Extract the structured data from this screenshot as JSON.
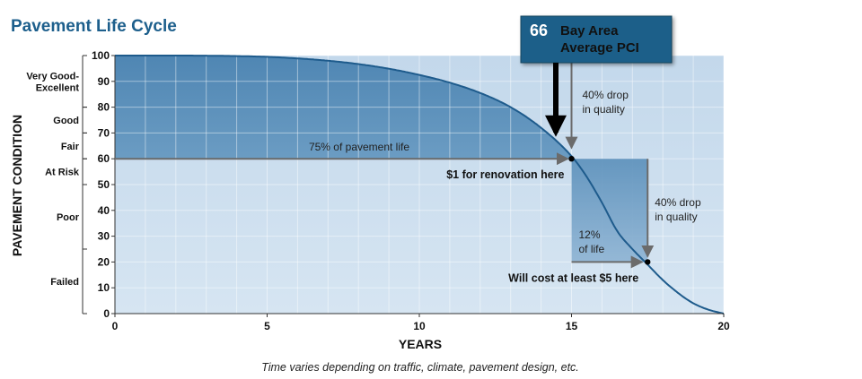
{
  "chart_data": {
    "type": "line",
    "title": "Pavement Life Cycle",
    "xlabel": "YEARS",
    "ylabel": "PAVEMENT CONDITION",
    "xlim": [
      0,
      20
    ],
    "ylim": [
      0,
      100
    ],
    "x_ticks": [
      0,
      5,
      10,
      15,
      20
    ],
    "y_ticks": [
      0,
      10,
      20,
      30,
      40,
      50,
      60,
      70,
      80,
      90,
      100
    ],
    "grid": true,
    "curve": {
      "x": [
        0,
        2,
        4,
        5,
        6,
        7,
        8,
        9,
        10,
        11,
        12,
        13,
        14,
        15,
        15.5,
        16,
        16.5,
        17,
        17.5,
        18,
        18.5,
        19,
        19.5,
        20
      ],
      "y": [
        100,
        100,
        99.8,
        99.5,
        98.9,
        98,
        96.7,
        94.9,
        92.5,
        89.5,
        85.5,
        80,
        72,
        61,
        53,
        43,
        32,
        25,
        19,
        13,
        8,
        4,
        1.5,
        0
      ]
    },
    "condition_bands": [
      {
        "label": "Very Good-Excellent",
        "label_lines": [
          "Very Good-",
          "Excellent"
        ],
        "from": 80,
        "to": 100
      },
      {
        "label": "Good",
        "label_lines": [
          "Good"
        ],
        "from": 70,
        "to": 80
      },
      {
        "label": "Fair",
        "label_lines": [
          "Fair"
        ],
        "from": 60,
        "to": 70
      },
      {
        "label": "At Risk",
        "label_lines": [
          "At Risk"
        ],
        "from": 50,
        "to": 60
      },
      {
        "label": "Poor",
        "label_lines": [
          "Poor"
        ],
        "from": 25,
        "to": 50
      },
      {
        "label": "Failed",
        "label_lines": [
          "Failed"
        ],
        "from": 0,
        "to": 25
      }
    ],
    "callout": {
      "value": "66",
      "lines": [
        "Bay Area",
        "Average PCI"
      ]
    },
    "annotations": {
      "pavement_life": "75% of pavement life",
      "drop1": [
        "40% drop",
        "in quality"
      ],
      "renovation": "$1 for renovation here",
      "drop2": [
        "40% drop",
        "in quality"
      ],
      "life12": [
        "12%",
        "of life"
      ],
      "cost5": "Will cost at least $5 here"
    },
    "points": [
      {
        "x": 15,
        "y": 60
      },
      {
        "x": 17.5,
        "y": 20
      }
    ],
    "footnote": "Time varies depending on traffic, climate, pavement design, etc.",
    "colors": {
      "upper_region": "#5d8fb7",
      "lower_region": "#c9dcec",
      "drop_shade": "#6d9cc1",
      "curve": "#1e5b8c",
      "callout_bg": "#1f5f89",
      "callout_border": "#16475f",
      "title": "#1d5f8c"
    }
  }
}
